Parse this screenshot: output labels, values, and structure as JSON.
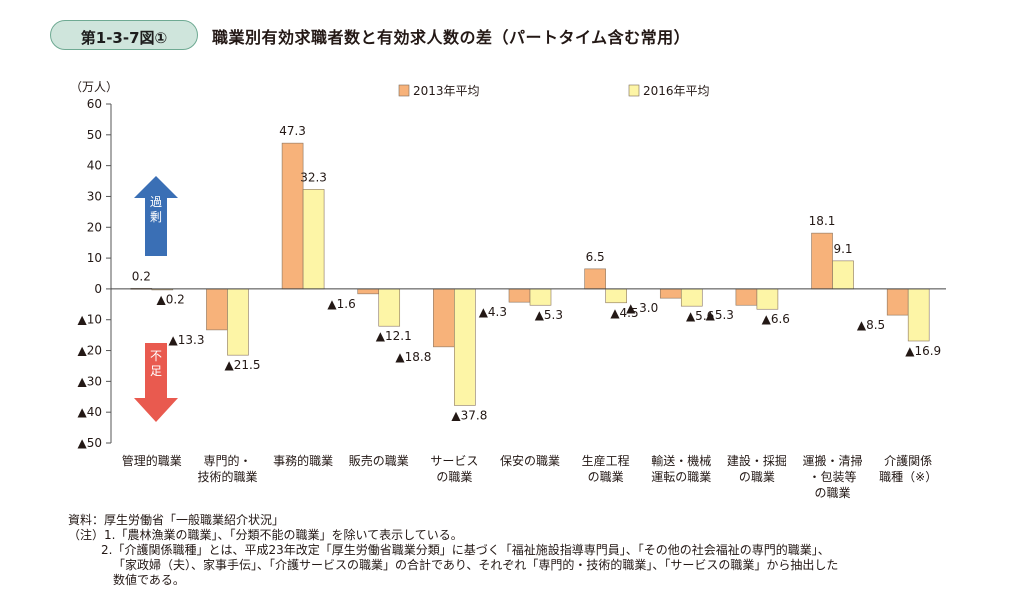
{
  "figure": {
    "badge": "第1-3-7図①",
    "title": "職業別有効求職者数と有効求人数の差（パートタイム含む常用）"
  },
  "chart_data": {
    "type": "bar",
    "yunit": "（万人）",
    "ylim": [
      -50,
      60
    ],
    "yticks": [
      60,
      50,
      40,
      30,
      20,
      10,
      0,
      -10,
      -20,
      -30,
      -40,
      -50
    ],
    "ytick_labels": [
      "60",
      "50",
      "40",
      "30",
      "20",
      "10",
      "0",
      "▲10",
      "▲20",
      "▲30",
      "▲40",
      "▲50"
    ],
    "categories": [
      [
        "管理的職業"
      ],
      [
        "専門的・",
        "技術的職業"
      ],
      [
        "事務的職業"
      ],
      [
        "販売の職業"
      ],
      [
        "サービス",
        "の職業"
      ],
      [
        "保安の職業"
      ],
      [
        "生産工程",
        "の職業"
      ],
      [
        "輸送・機械",
        "運転の職業"
      ],
      [
        "建設・採掘",
        "の職業"
      ],
      [
        "運搬・清掃",
        "・包装等",
        "の職業"
      ],
      [
        "介護関係",
        "職種（※）"
      ]
    ],
    "series": [
      {
        "name": "2013年平均",
        "color": "#f7b27a",
        "values": [
          0.2,
          -13.3,
          47.3,
          -1.6,
          -18.8,
          -4.3,
          6.5,
          -3.0,
          -5.3,
          18.1,
          -8.5
        ],
        "labels": [
          "0.2",
          "▲13.3",
          "47.3",
          "▲1.6",
          "▲18.8",
          "▲4.3",
          "6.5",
          "▲ 3.0",
          "▲5.3",
          "18.1",
          "▲8.5"
        ]
      },
      {
        "name": "2016年平均",
        "color": "#fdf5a6",
        "values": [
          -0.2,
          -21.5,
          32.3,
          -12.1,
          -37.8,
          -5.3,
          -4.5,
          -5.6,
          -6.6,
          9.1,
          -16.9
        ],
        "labels": [
          "▲0.2",
          "▲21.5",
          "32.3",
          "▲12.1",
          "▲37.8",
          "▲5.3",
          "▲4.5",
          "▲5.6",
          "▲6.6",
          "9.1",
          "▲16.9"
        ]
      }
    ],
    "annotations": {
      "excess": "過剰",
      "excess_color": "#3a6fb5",
      "shortage": "不足",
      "shortage_color": "#e95a4f"
    },
    "grid": false,
    "legend_position": "top-center"
  },
  "notes": {
    "source": "資料：厚生労働省「一般職業紹介状況」",
    "note1": "（注）1.「農林漁業の職業」、「分類不能の職業」を除いて表示している。",
    "note2_line1": "2.「介護関係職種」とは、平成23年改定「厚生労働省職業分類」に基づく「福祉施設指導専門員」、「その他の社会福祉の専門的職業」、",
    "note2_line2": "「家政婦（夫）、家事手伝」、「介護サービスの職業」の合計であり、それぞれ「専門的・技術的職業」、「サービスの職業」から抽出した",
    "note2_line3": "数値である。"
  }
}
